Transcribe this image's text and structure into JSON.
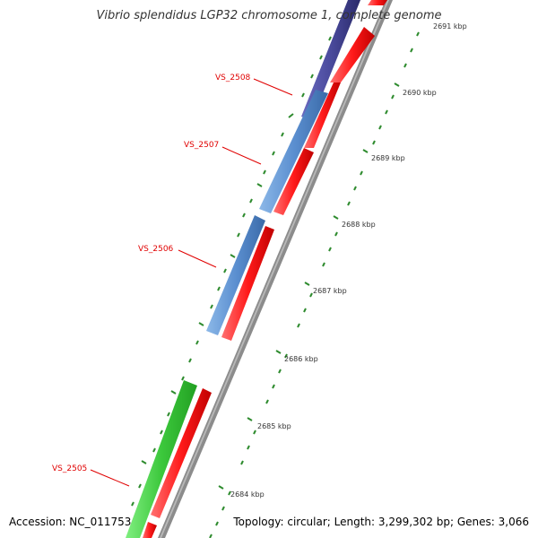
{
  "title": "Vibrio splendidus LGP32 chromosome 1, complete genome",
  "accession": "Accession: NC_011753",
  "summary": "Topology: circular; Length: 3,299,302 bp; Genes: 3,066",
  "ticks": [
    {
      "label": "2691 kbp"
    },
    {
      "label": "2690 kbp"
    },
    {
      "label": "2689 kbp"
    },
    {
      "label": "2688 kbp"
    },
    {
      "label": "2687 kbp"
    },
    {
      "label": "2686 kbp"
    },
    {
      "label": "2685 kbp"
    },
    {
      "label": "2684 kbp"
    }
  ],
  "gene_labels": [
    "VS_2508",
    "VS_2507",
    "VS_2506",
    "VS_2505"
  ],
  "colors": {
    "cds_forward": "#ff0000",
    "gene_purple": "#4a4a9c",
    "gene_blue": "#5b8fd0",
    "gene_green": "#3cc83c",
    "backbone": "#808080",
    "tick": "#2e8b2e",
    "label_red": "#e00000"
  }
}
